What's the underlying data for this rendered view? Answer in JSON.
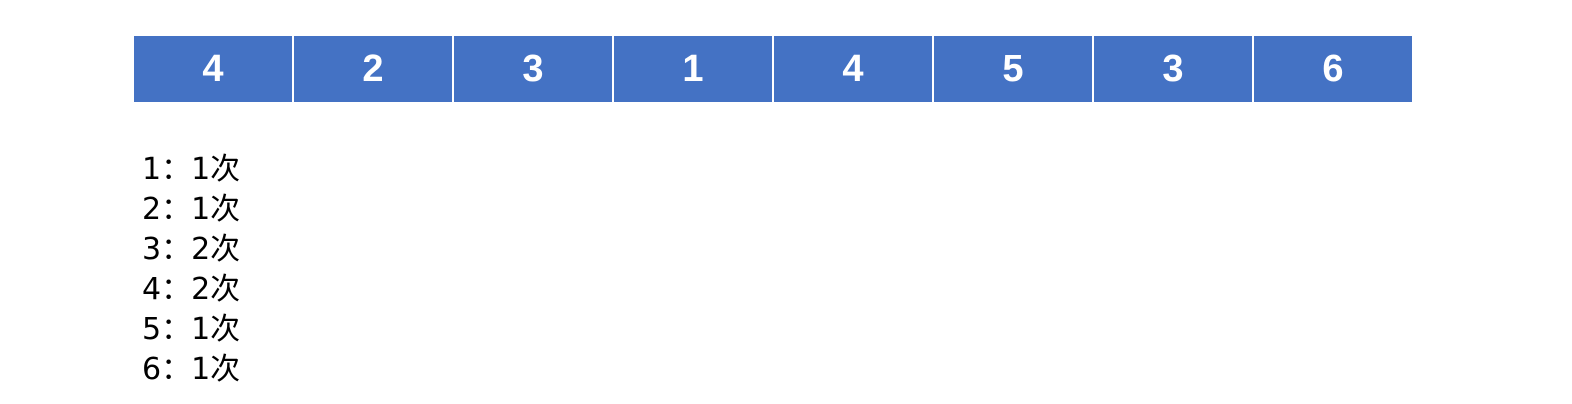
{
  "array": {
    "cells": [
      "4",
      "2",
      "3",
      "1",
      "4",
      "5",
      "3",
      "6"
    ]
  },
  "counts": {
    "lines": [
      "1：1次",
      "2：1次",
      "3：2次",
      "4：2次",
      "5：1次",
      "6：1次"
    ]
  },
  "colors": {
    "cell_fill": "#4472C4",
    "cell_text": "#ffffff",
    "text": "#000000"
  }
}
